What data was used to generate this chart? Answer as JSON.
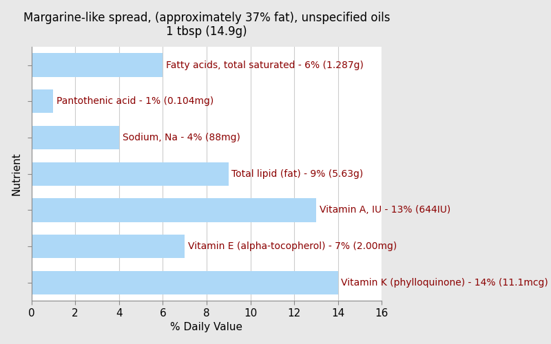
{
  "title": "Margarine-like spread, (approximately 37% fat), unspecified oils\n1 tbsp (14.9g)",
  "xlabel": "% Daily Value",
  "ylabel": "Nutrient",
  "background_color": "#e8e8e8",
  "plot_background_color": "#ffffff",
  "bar_color": "#add8f7",
  "label_color": "#8b0000",
  "nutrients": [
    "Fatty acids, total saturated - 6% (1.287g)",
    "Pantothenic acid - 1% (0.104mg)",
    "Sodium, Na - 4% (88mg)",
    "Total lipid (fat) - 9% (5.63g)",
    "Vitamin A, IU - 13% (644IU)",
    "Vitamin E (alpha-tocopherol) - 7% (2.00mg)",
    "Vitamin K (phylloquinone) - 14% (11.1mcg)"
  ],
  "values": [
    6,
    1,
    4,
    9,
    13,
    7,
    14
  ],
  "xlim": [
    0,
    16
  ],
  "xticks": [
    0,
    2,
    4,
    6,
    8,
    10,
    12,
    14,
    16
  ],
  "title_fontsize": 12,
  "label_fontsize": 10,
  "tick_fontsize": 11,
  "bar_height": 0.65
}
